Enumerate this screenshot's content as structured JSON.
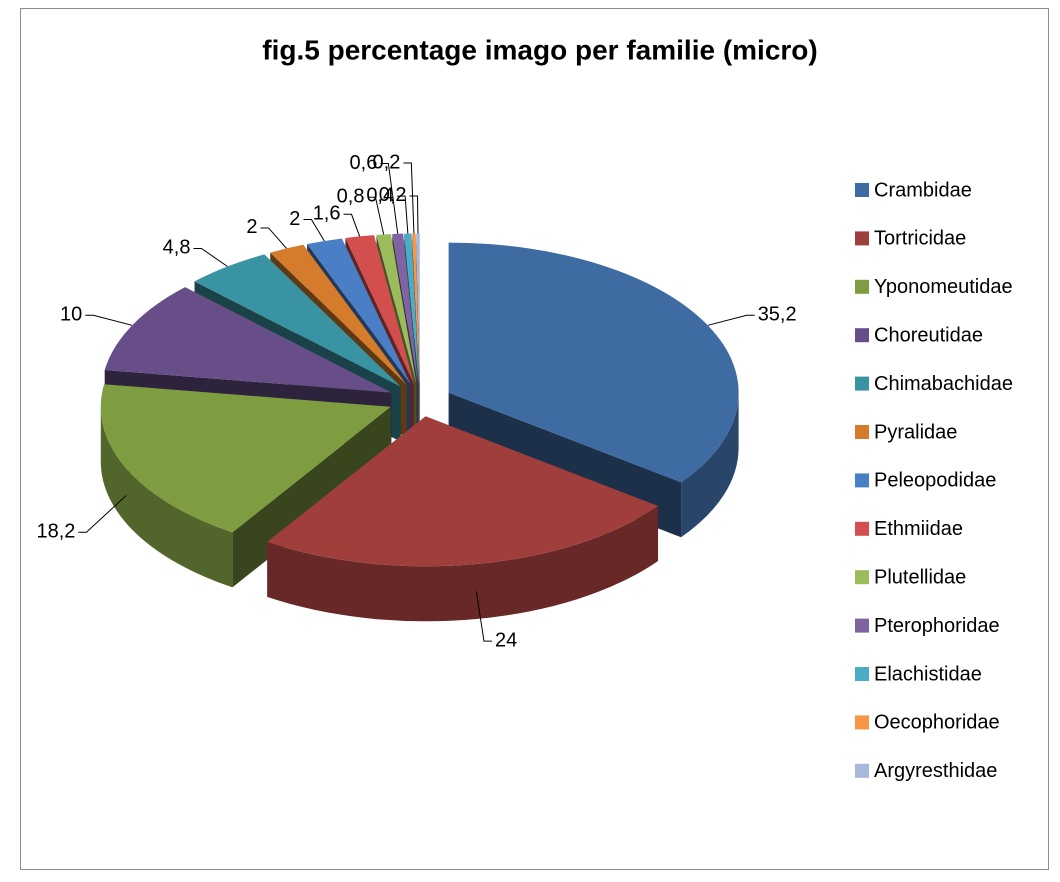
{
  "chart_data": {
    "type": "pie3d",
    "title": "fig.5 percentage imago per familie (micro)",
    "categories": [
      "Crambidae",
      "Tortricidae",
      "Yponomeutidae",
      "Choreutidae",
      "Chimabachidae",
      "Pyralidae",
      "Peleopodidae",
      "Ethmiidae",
      "Plutellidae",
      "Pterophoridae",
      "Elachistidae",
      "Oecophoridae",
      "Argyresthidae"
    ],
    "values": [
      35.2,
      24,
      18.2,
      10,
      4.8,
      2,
      2,
      1.6,
      0.8,
      0.6,
      0.4,
      0.2,
      0.2
    ],
    "value_labels": [
      "35,2",
      "24",
      "18,2",
      "10",
      "4,8",
      "2",
      "2",
      "1,6",
      "0,8",
      "0,6",
      "0,4",
      "0,2",
      "0,2"
    ],
    "colors": [
      "#3f6ba3",
      "#a03e3c",
      "#7e9c40",
      "#674e88",
      "#3a93a3",
      "#d47c2c",
      "#4a7fc6",
      "#d24f4e",
      "#9bbc5a",
      "#8064a2",
      "#4bacc6",
      "#f79646",
      "#a8b8da"
    ],
    "legend": "right"
  }
}
